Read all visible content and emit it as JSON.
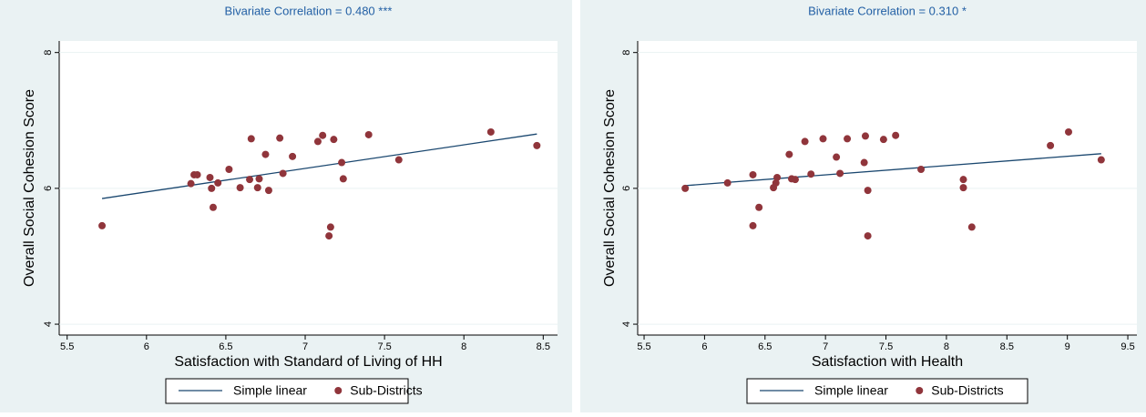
{
  "chart_data": [
    {
      "type": "scatter",
      "title": "Bivariate Correlation = 0.480 ***",
      "x_label": "Satisfaction with Standard of Living of HH",
      "y_label": "Overall Social Cohesion Score",
      "xlim": [
        5.45,
        8.59
      ],
      "xticks": [
        5.5,
        6,
        6.5,
        7,
        7.5,
        8,
        8.5
      ],
      "ylim": [
        3.84,
        8.17
      ],
      "yticks": [
        4,
        6,
        8
      ],
      "grid": true,
      "legend": "bottom",
      "series": [
        {
          "name": "Simple linear",
          "color": "#1a476f",
          "mode": "line",
          "x": [
            5.72,
            8.46
          ],
          "values": [
            5.85,
            6.8
          ]
        },
        {
          "name": "Sub-Districts",
          "color": "#90353b",
          "mode": "markers",
          "x": [
            5.72,
            6.28,
            6.3,
            6.32,
            6.4,
            6.41,
            6.42,
            6.45,
            6.52,
            6.59,
            6.65,
            6.66,
            6.7,
            6.71,
            6.75,
            6.77,
            6.84,
            6.86,
            6.92,
            7.08,
            7.11,
            7.15,
            7.16,
            7.18,
            7.23,
            7.24,
            7.4,
            7.59,
            8.17,
            8.46
          ],
          "values": [
            5.45,
            6.07,
            6.2,
            6.2,
            6.16,
            6.0,
            5.72,
            6.08,
            6.28,
            6.01,
            6.13,
            6.73,
            6.01,
            6.14,
            6.5,
            5.97,
            6.74,
            6.22,
            6.47,
            6.69,
            6.78,
            5.3,
            5.43,
            6.72,
            6.38,
            6.14,
            6.79,
            6.42,
            6.83,
            6.63
          ]
        }
      ]
    },
    {
      "type": "scatter",
      "title": "Bivariate Correlation = 0.310 *",
      "x_label": "Satisfaction with Health",
      "y_label": "Overall Social Cohesion Score",
      "xlim": [
        5.447,
        9.575
      ],
      "xticks": [
        5.5,
        6,
        6.5,
        7,
        7.5,
        8,
        8.5,
        9,
        9.5
      ],
      "ylim": [
        3.84,
        8.17
      ],
      "yticks": [
        4,
        6,
        8
      ],
      "grid": true,
      "legend": "bottom",
      "series": [
        {
          "name": "Simple linear",
          "color": "#1a476f",
          "mode": "line",
          "x": [
            5.84,
            9.28
          ],
          "values": [
            6.04,
            6.51
          ]
        },
        {
          "name": "Sub-Districts",
          "color": "#90353b",
          "mode": "markers",
          "x": [
            5.84,
            6.19,
            6.4,
            6.4,
            6.45,
            6.57,
            6.59,
            6.6,
            6.7,
            6.72,
            6.75,
            6.83,
            6.88,
            6.98,
            7.09,
            7.12,
            7.18,
            7.32,
            7.33,
            7.35,
            7.35,
            7.48,
            7.58,
            7.79,
            8.14,
            8.14,
            8.21,
            8.86,
            9.01,
            9.28
          ],
          "values": [
            6.0,
            6.08,
            6.2,
            5.45,
            5.72,
            6.01,
            6.08,
            6.16,
            6.5,
            6.14,
            6.13,
            6.69,
            6.21,
            6.73,
            6.46,
            6.22,
            6.73,
            6.38,
            6.77,
            5.97,
            5.3,
            6.72,
            6.78,
            6.28,
            6.13,
            6.01,
            5.43,
            6.63,
            6.83,
            6.42
          ]
        }
      ]
    }
  ]
}
